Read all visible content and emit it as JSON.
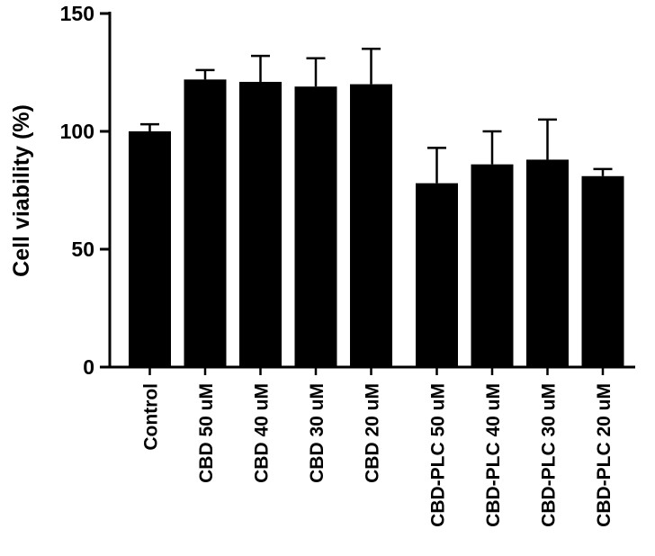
{
  "chart_data": {
    "type": "bar",
    "categories": [
      "Control",
      "CBD 50 uM",
      "CBD 40 uM",
      "CBD 30 uM",
      "CBD 20 uM",
      "CBD-PLC 50 uM",
      "CBD-PLC 40 uM",
      "CBD-PLC 30 uM",
      "CBD-PLC 20 uM"
    ],
    "values": [
      100,
      122,
      121,
      119,
      120,
      78,
      86,
      88,
      81
    ],
    "errors": [
      3,
      4,
      11,
      12,
      15,
      15,
      14,
      17,
      3
    ],
    "error_type": "upper-only",
    "title": "",
    "xlabel": "",
    "ylabel": "Cell viability (%)",
    "ylim": [
      0,
      150
    ],
    "yticks": [
      0,
      50,
      100,
      150
    ],
    "bar_color": "#000000",
    "axis_color": "#000000",
    "grid": false,
    "legend": false,
    "group_gap_after_index": 4
  }
}
